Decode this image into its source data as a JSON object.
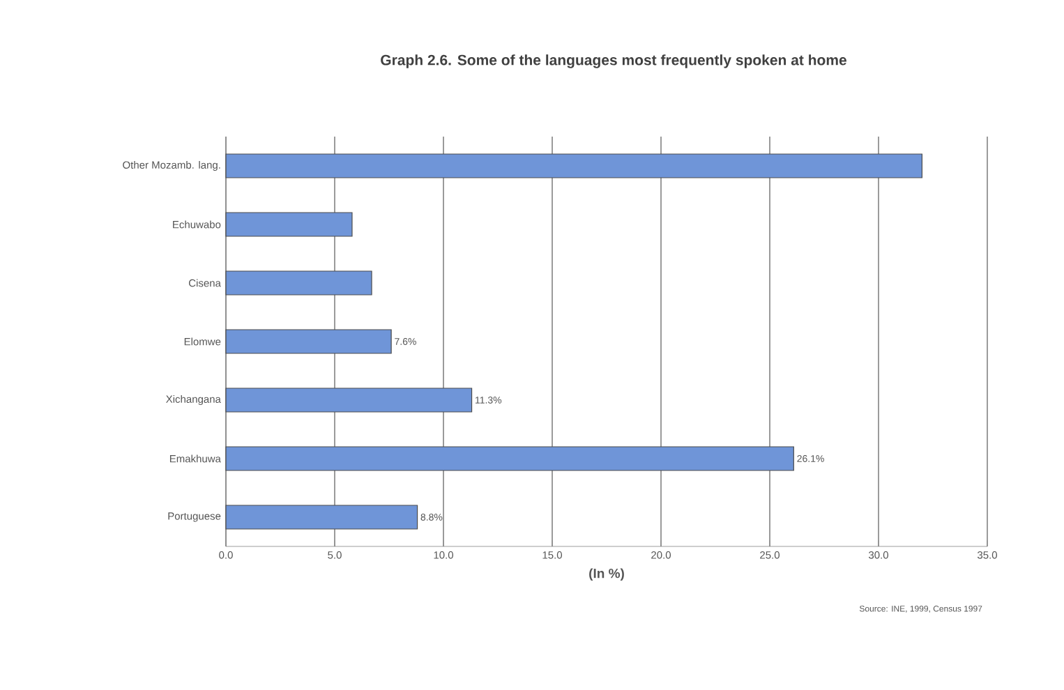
{
  "chart_data": {
    "type": "bar",
    "orientation": "horizontal",
    "title": "Graph 2.6. Some of the languages most frequently spoken at home",
    "xlabel": "(In %)",
    "annotations": [
      "Source: INE, 1999, Census 1997"
    ],
    "categories": [
      "Other Mozamb. lang.",
      "Echuwabo",
      "Cisena",
      "Elomwe",
      "Xichangana",
      "Emakhuwa",
      "Portuguese"
    ],
    "values": [
      32.0,
      5.8,
      6.7,
      7.6,
      11.3,
      26.1,
      8.8
    ],
    "value_labels": [
      null,
      null,
      null,
      "7.6%",
      "11.3%",
      "26.1%",
      "8.8%"
    ],
    "color": "#6f95d8",
    "xlim": [
      0,
      35
    ],
    "xticks": [
      {
        "value": 0,
        "label": "0.0"
      },
      {
        "value": 5,
        "label": "5.0"
      },
      {
        "value": 10,
        "label": "10.0"
      },
      {
        "value": 15,
        "label": "15.0"
      },
      {
        "value": 20,
        "label": "20.0"
      },
      {
        "value": 25,
        "label": "25.0"
      },
      {
        "value": 30,
        "label": "30.0"
      },
      {
        "value": 35,
        "label": "35.0"
      }
    ],
    "grid": "x"
  }
}
